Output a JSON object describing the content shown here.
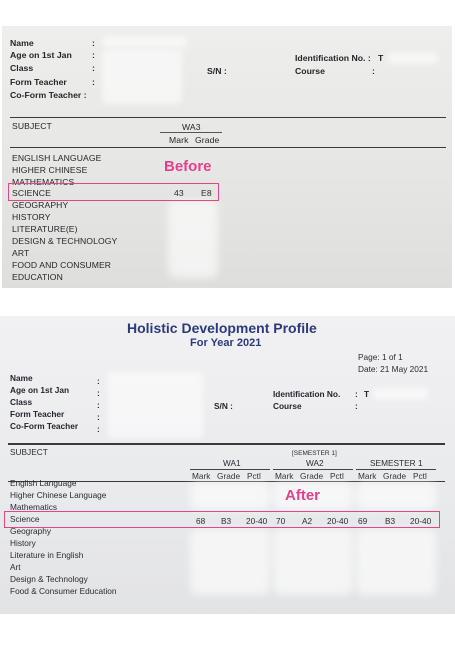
{
  "top": {
    "fields": {
      "name": "Name",
      "age": "Age on 1st Jan",
      "class": "Class",
      "form_teacher": "Form Teacher",
      "co_form_teacher": "Co-Form Teacher :",
      "colon": ":",
      "sn": "S/N :",
      "id_no": "Identification No. :",
      "id_val": "T",
      "course": "Course"
    },
    "subject_header": "SUBJECT",
    "wa3": "WA3",
    "mark": "Mark",
    "grade": "Grade",
    "subjects": [
      "ENGLISH LANGUAGE",
      "HIGHER CHINESE",
      "MATHEMATICS",
      "SCIENCE",
      "GEOGRAPHY",
      "HISTORY",
      "LITERATURE(E)",
      "DESIGN & TECHNOLOGY",
      "ART",
      "FOOD AND CONSUMER",
      "EDUCATION"
    ],
    "science_mark": "43",
    "science_grade": "E8",
    "label": "Before"
  },
  "bottom": {
    "title": "Holistic Development Profile",
    "subtitle": "For Year 2021",
    "page": "Page: 1  of  1",
    "date": "Date: 21 May 2021",
    "fields": {
      "name": "Name",
      "age": "Age on 1st Jan",
      "class": "Class",
      "form_teacher": "Form Teacher",
      "co_form_teacher": "Co-Form Teacher",
      "colon": ":",
      "sn": "S/N :",
      "id_no": "Identification No.",
      "id_val": "T",
      "course": "Course"
    },
    "subject_header": "SUBJECT",
    "semester_note": "[SEMESTER 1]",
    "groups": [
      "WA1",
      "WA2",
      "SEMESTER 1"
    ],
    "cols": [
      "Mark",
      "Grade",
      "Pctl"
    ],
    "subjects": [
      "English Language",
      "Higher Chinese Language",
      "Mathematics",
      "Science",
      "Geography",
      "History",
      "Literature in English",
      "Art",
      "Design & Technology",
      "Food & Consumer Education"
    ],
    "science_row": [
      "68",
      "B3",
      "20-40",
      "70",
      "A2",
      "20-40",
      "69",
      "B3",
      "20-40"
    ],
    "label": "After"
  }
}
